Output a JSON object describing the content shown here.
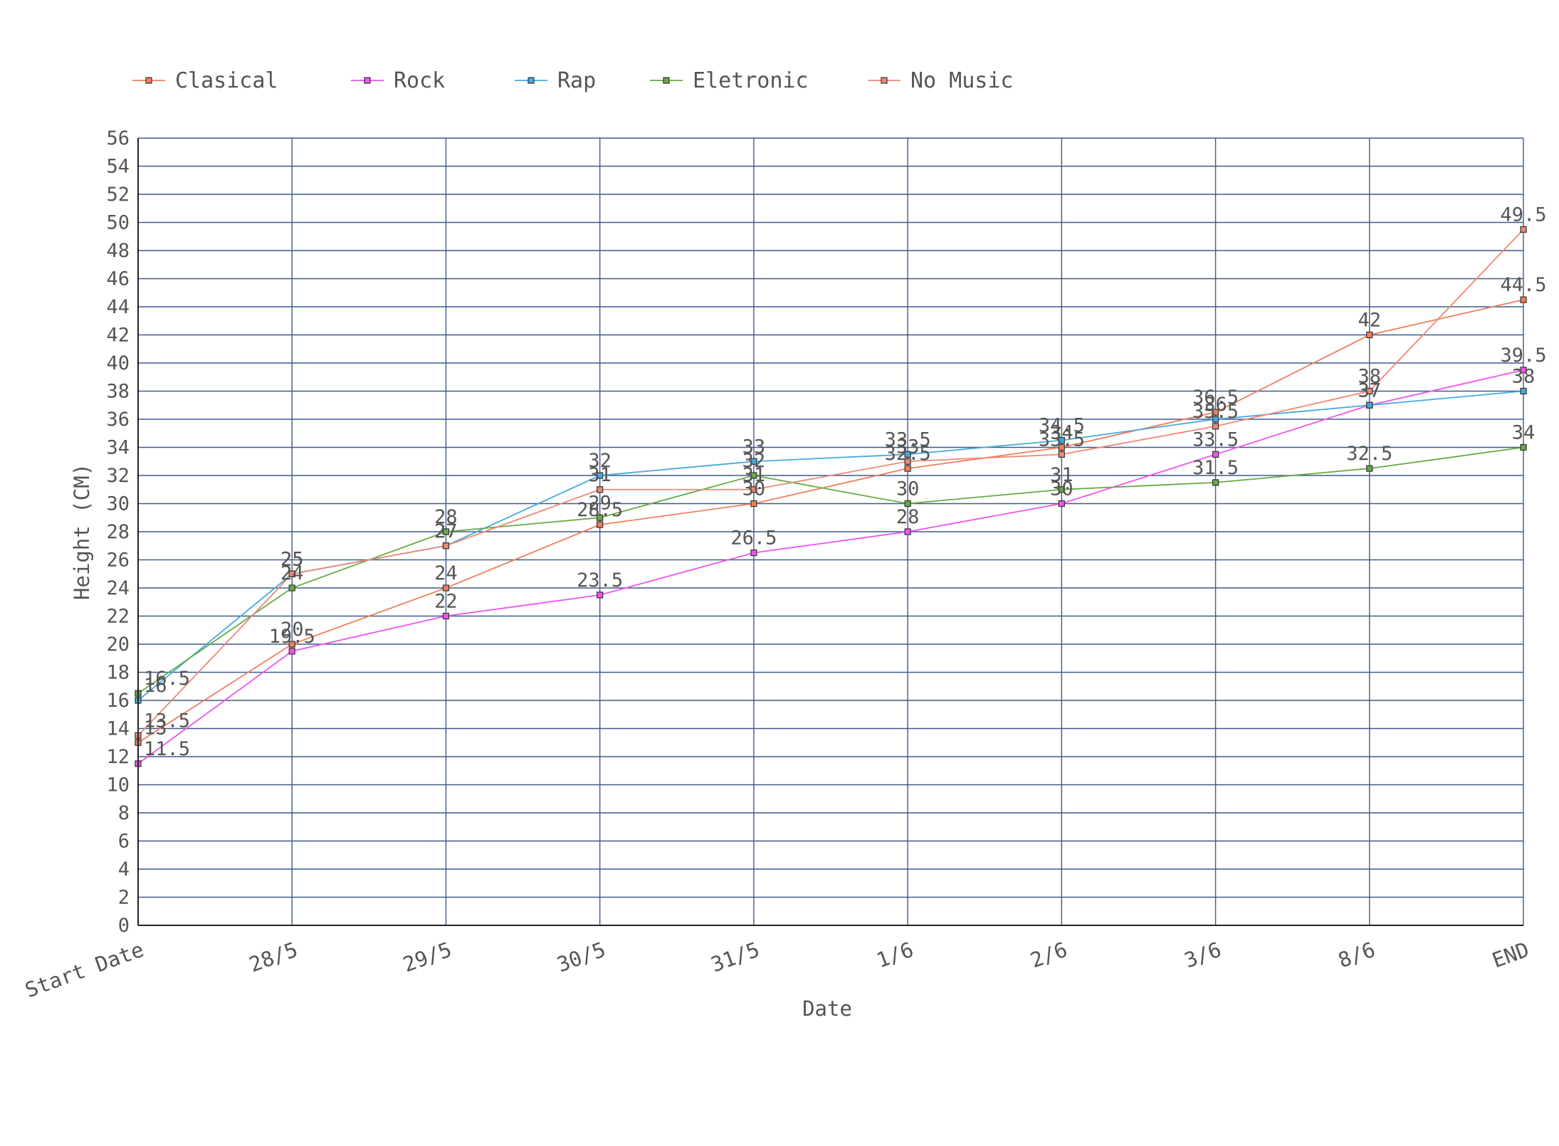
{
  "chart_data": {
    "type": "line",
    "title": "",
    "xlabel": "Date",
    "ylabel": "Height (CM)",
    "ylim": [
      0,
      56
    ],
    "ytick_step": 2,
    "grid": true,
    "legend_position": "top-left",
    "categories": [
      "Start Date",
      "28/5",
      "29/5",
      "30/5",
      "31/5",
      "1/6",
      "2/6",
      "3/6",
      "8/6",
      "END"
    ],
    "series": [
      {
        "name": "Clasical",
        "color": "#f07f5c",
        "values": [
          13,
          20,
          24,
          28.5,
          30,
          32.5,
          34,
          36.5,
          42,
          44.5
        ]
      },
      {
        "name": "Rock",
        "color": "#ee55ee",
        "values": [
          11.5,
          19.5,
          22,
          23.5,
          26.5,
          28,
          30,
          33.5,
          37,
          39.5
        ]
      },
      {
        "name": "Rap",
        "color": "#44aadd",
        "values": [
          16,
          25,
          27,
          32,
          33,
          33.5,
          34.5,
          36,
          37,
          38
        ]
      },
      {
        "name": "Eletronic",
        "color": "#66aa44",
        "values": [
          16.5,
          24,
          28,
          29,
          32,
          30,
          31,
          31.5,
          32.5,
          34
        ]
      },
      {
        "name": "No Music",
        "color": "#ee8877",
        "values": [
          13.5,
          25,
          27,
          31,
          31,
          33,
          33.5,
          35.5,
          38,
          49.5
        ]
      }
    ]
  }
}
